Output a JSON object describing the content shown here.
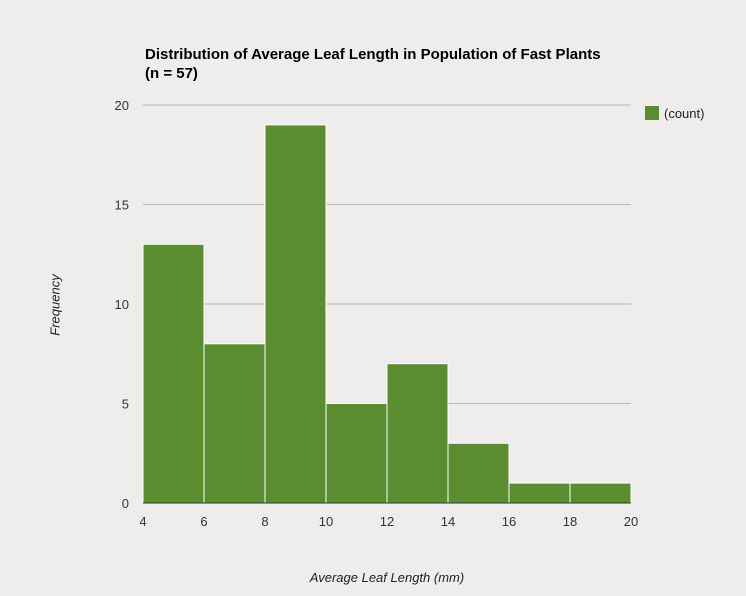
{
  "chart_data": {
    "type": "bar",
    "title": "Distribution of Average Leaf Length in Population of Fast Plants",
    "subtitle": "(n = 57)",
    "xlabel": "Average Leaf Length (mm)",
    "ylabel": "Frequency",
    "bins": [
      [
        4,
        6
      ],
      [
        6,
        8
      ],
      [
        8,
        10
      ],
      [
        10,
        12
      ],
      [
        12,
        14
      ],
      [
        14,
        16
      ],
      [
        16,
        18
      ],
      [
        18,
        20
      ]
    ],
    "values": [
      13,
      8,
      19,
      5,
      7,
      3,
      1,
      1
    ],
    "xlim": [
      4,
      20
    ],
    "ylim": [
      0,
      20
    ],
    "xticks": [
      4,
      6,
      8,
      10,
      12,
      14,
      16,
      18,
      20
    ],
    "yticks": [
      0,
      5,
      10,
      15,
      20
    ],
    "grid": true,
    "legend": {
      "position": "top-right",
      "entries": [
        {
          "name": "(count)",
          "color": "#5a8d2f"
        }
      ]
    },
    "bar_color": "#5a8d2f"
  }
}
